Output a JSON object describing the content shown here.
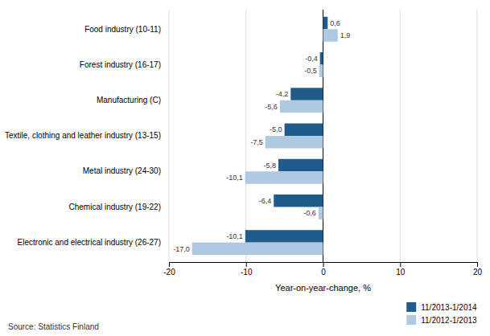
{
  "chart_data": {
    "type": "bar",
    "orientation": "horizontal",
    "categories": [
      "Electronic and electrical industry (26-27)",
      "Chemical industry (19-22)",
      "Metal industry (24-30)",
      "Textile, clothing and leather industry (13-15)",
      "Manufacturing (C)",
      "Forest industry (16-17)",
      "Food industry (10-11)"
    ],
    "series": [
      {
        "name": "11/2013-1/2014",
        "color": "#1F5C8B",
        "values": [
          -10.1,
          -6.4,
          -5.8,
          -5.0,
          -4.2,
          -0.4,
          0.6
        ],
        "value_labels": [
          "-10,1",
          "-6,4",
          "-5,8",
          "-5,0",
          "-4,2",
          "-0,4",
          "0,6"
        ]
      },
      {
        "name": "11/2012-1/2013",
        "color": "#AFC9E0",
        "values": [
          -17.0,
          -0.6,
          -10.1,
          -7.5,
          -5.6,
          -0.5,
          1.9
        ],
        "value_labels": [
          "-17,0",
          "-0,6",
          "-10,1",
          "-7,5",
          "-5,6",
          "-0,5",
          "1,9"
        ]
      }
    ],
    "xlabel": "Year-on-year-change, %",
    "xlim": [
      -20,
      20
    ],
    "xticks": [
      -20,
      -10,
      0,
      10,
      20
    ],
    "grid": true,
    "legend": "lower right",
    "data_labels": true,
    "annotations": [
      "Source: Statistics Finland"
    ]
  }
}
